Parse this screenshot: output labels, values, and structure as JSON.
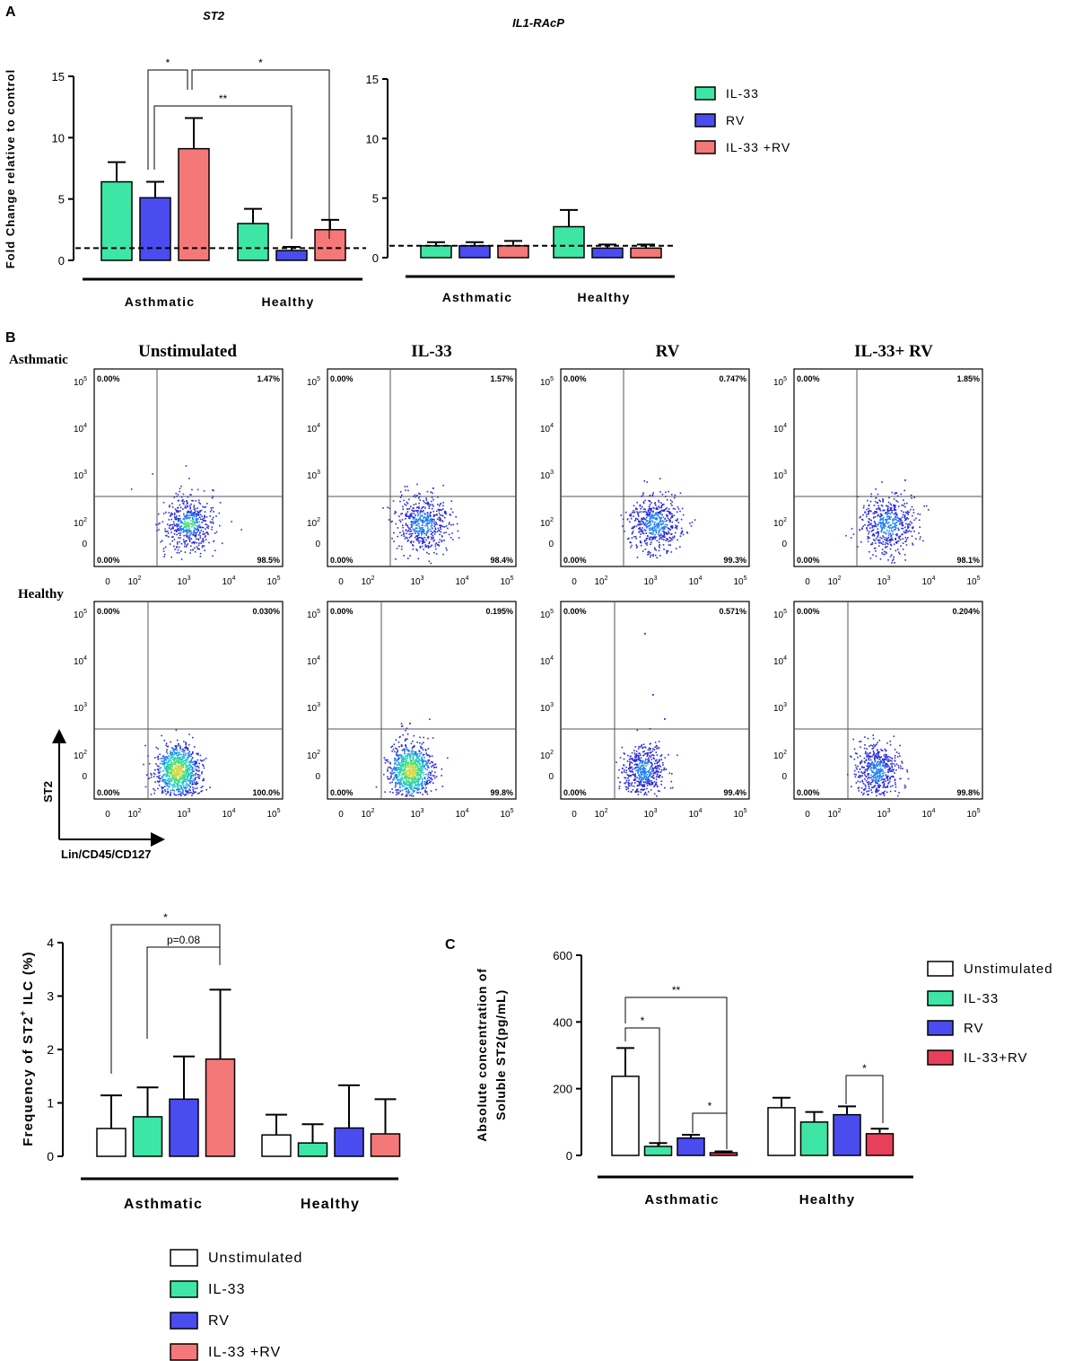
{
  "chart_data": {
    "panel_a": {
      "label": "A",
      "type": "bar",
      "ylabel": "Fold Change relative to control",
      "ylim": [
        0,
        15
      ],
      "yticks": [
        0,
        5,
        10,
        15
      ],
      "reference_line": 1,
      "legend": [
        "IL-33",
        "RV",
        "IL-33 +RV"
      ],
      "charts": [
        {
          "title": "ST2",
          "groups": [
            "Asthmatic",
            "Healthy"
          ],
          "series": [
            {
              "name": "IL-33",
              "color": "#3ee6a5",
              "values": [
                6.4,
                3.0
              ],
              "errors": [
                1.6,
                1.2
              ]
            },
            {
              "name": "RV",
              "color": "#4a4cf0",
              "values": [
                5.1,
                0.8
              ],
              "errors": [
                1.3,
                0.3
              ]
            },
            {
              "name": "IL-33 +RV",
              "color": "#f57878",
              "values": [
                9.1,
                2.5
              ],
              "errors": [
                2.5,
                0.8
              ]
            }
          ],
          "annotations": [
            "*",
            "*",
            "**"
          ]
        },
        {
          "title": "IL1-RAcP",
          "groups": [
            "Asthmatic",
            "Healthy"
          ],
          "series": [
            {
              "name": "IL-33",
              "color": "#3ee6a5",
              "values": [
                1.0,
                2.6
              ],
              "errors": [
                0.3,
                1.4
              ]
            },
            {
              "name": "RV",
              "color": "#4a4cf0",
              "values": [
                1.0,
                0.8
              ],
              "errors": [
                0.3,
                0.3
              ]
            },
            {
              "name": "IL-33 +RV",
              "color": "#f57878",
              "values": [
                1.0,
                0.8
              ],
              "errors": [
                0.4,
                0.3
              ]
            }
          ]
        }
      ]
    },
    "panel_b": {
      "label": "B",
      "type": "scatter",
      "row_labels": [
        "Asthmatic",
        "Healthy"
      ],
      "column_titles": [
        "Unstimulated",
        "IL-33",
        "RV",
        "IL-33+ RV"
      ],
      "ylabel": "ST2",
      "xlabel": "Lin/CD45/CD127",
      "tick_labels": [
        "0",
        "10",
        "10",
        "10",
        "10"
      ],
      "tick_exponents": [
        "",
        "2",
        "3",
        "4",
        "5"
      ],
      "quadrants": [
        [
          [
            "0.00%",
            "1.47%",
            "0.00%",
            "98.5%"
          ],
          [
            "0.00%",
            "1.57%",
            "0.00%",
            "98.4%"
          ],
          [
            "0.00%",
            "0.747%",
            "0.00%",
            "99.3%"
          ],
          [
            "0.00%",
            "1.85%",
            "0.00%",
            "98.1%"
          ]
        ],
        [
          [
            "0.00%",
            "0.030%",
            "0.00%",
            "100.0%"
          ],
          [
            "0.00%",
            "0.195%",
            "0.00%",
            "99.8%"
          ],
          [
            "0.00%",
            "0.571%",
            "0.00%",
            "99.4%"
          ],
          [
            "0.00%",
            "0.204%",
            "0.00%",
            "99.8%"
          ]
        ]
      ]
    },
    "panel_freq": {
      "type": "bar",
      "ylabel_main": "Frequency of ST2",
      "ylabel_sup": "+",
      "ylabel_tail": " ILC  (%)",
      "ylim": [
        0,
        4
      ],
      "yticks": [
        0,
        1,
        2,
        3,
        4
      ],
      "groups": [
        "Asthmatic",
        "Healthy"
      ],
      "series": [
        {
          "name": "Unstimulated",
          "color": "#ffffff",
          "values": [
            0.52,
            0.4
          ],
          "errors": [
            0.62,
            0.38
          ]
        },
        {
          "name": "IL-33",
          "color": "#3ee6a5",
          "values": [
            0.74,
            0.25
          ],
          "errors": [
            0.55,
            0.35
          ]
        },
        {
          "name": "RV",
          "color": "#4a4cf0",
          "values": [
            1.07,
            0.53
          ],
          "errors": [
            0.8,
            0.8
          ]
        },
        {
          "name": "IL-33 +RV",
          "color": "#f57878",
          "values": [
            1.82,
            0.42
          ],
          "errors": [
            1.3,
            0.65
          ]
        }
      ],
      "annotations": [
        "*",
        "p=0.08"
      ],
      "legend": [
        "Unstimulated",
        "IL-33",
        "RV",
        "IL-33 +RV"
      ]
    },
    "panel_c": {
      "label": "C",
      "type": "bar",
      "ylabel_line1": "Absolute concentration of",
      "ylabel_line2": "Soluble ST2(pg/mL)",
      "ylim": [
        0,
        600
      ],
      "yticks": [
        0,
        200,
        400,
        600
      ],
      "groups": [
        "Asthmatic",
        "Healthy"
      ],
      "series": [
        {
          "name": "Unstimulated",
          "color": "#ffffff",
          "values": [
            237,
            143
          ],
          "errors": [
            85,
            30
          ]
        },
        {
          "name": "IL-33",
          "color": "#3ee6a5",
          "values": [
            27,
            100
          ],
          "errors": [
            10,
            30
          ]
        },
        {
          "name": "RV",
          "color": "#4a4cf0",
          "values": [
            52,
            122
          ],
          "errors": [
            10,
            25
          ]
        },
        {
          "name": "IL-33+RV",
          "color": "#e8405a",
          "values": [
            8,
            65
          ],
          "errors": [
            4,
            15
          ]
        }
      ],
      "annotations": [
        "**",
        "*",
        "*",
        "*"
      ],
      "legend": [
        "Unstimulated",
        "IL-33",
        "RV",
        "IL-33+RV"
      ]
    }
  }
}
